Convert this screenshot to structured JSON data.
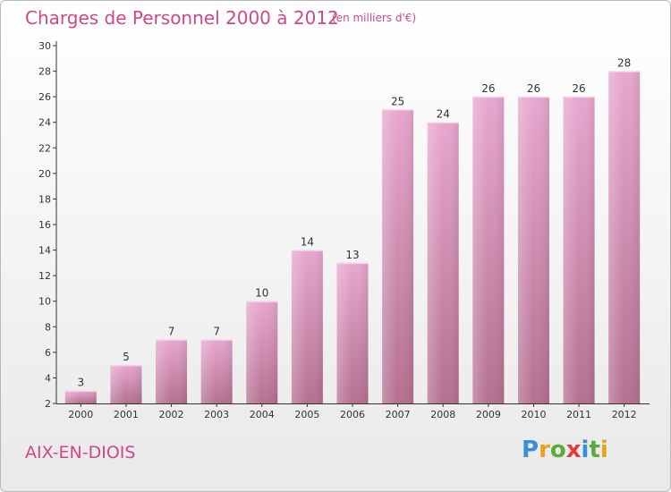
{
  "header": {
    "title": "Charges de Personnel 2000 à 2012",
    "subtitle": "(en milliers d'€)"
  },
  "footer": {
    "commune": "AIX-EN-DIOIS",
    "logo_text": "Proxiti",
    "logo_colors": [
      "#3a8fd6",
      "#e8a21a",
      "#5aab3a",
      "#e23c3c",
      "#3a8fd6",
      "#5aab3a",
      "#e8a21a"
    ]
  },
  "colors": {
    "accent": "#d0478a",
    "bar_top": "#e7a7cf",
    "bar_bottom": "#b4708f",
    "axis": "#333333"
  },
  "chart_data": {
    "type": "bar",
    "categories": [
      "2000",
      "2001",
      "2002",
      "2003",
      "2004",
      "2005",
      "2006",
      "2007",
      "2008",
      "2009",
      "2010",
      "2011",
      "2012"
    ],
    "values": [
      3,
      5,
      7,
      7,
      10,
      14,
      13,
      25,
      24,
      26,
      26,
      26,
      28
    ],
    "data_labels": [
      "3",
      "5",
      "7",
      "7",
      "10",
      "14",
      "13",
      "25",
      "24",
      "26",
      "26",
      "26",
      "28"
    ],
    "title": "Charges de Personnel 2000 à 2012",
    "subtitle": "(en milliers d'€)",
    "xlabel": "",
    "ylabel": "",
    "ylim": [
      2,
      30
    ],
    "yticks": [
      2,
      4,
      6,
      8,
      10,
      12,
      14,
      16,
      18,
      20,
      22,
      24,
      26,
      28,
      30
    ],
    "grid": false,
    "legend": "none"
  }
}
